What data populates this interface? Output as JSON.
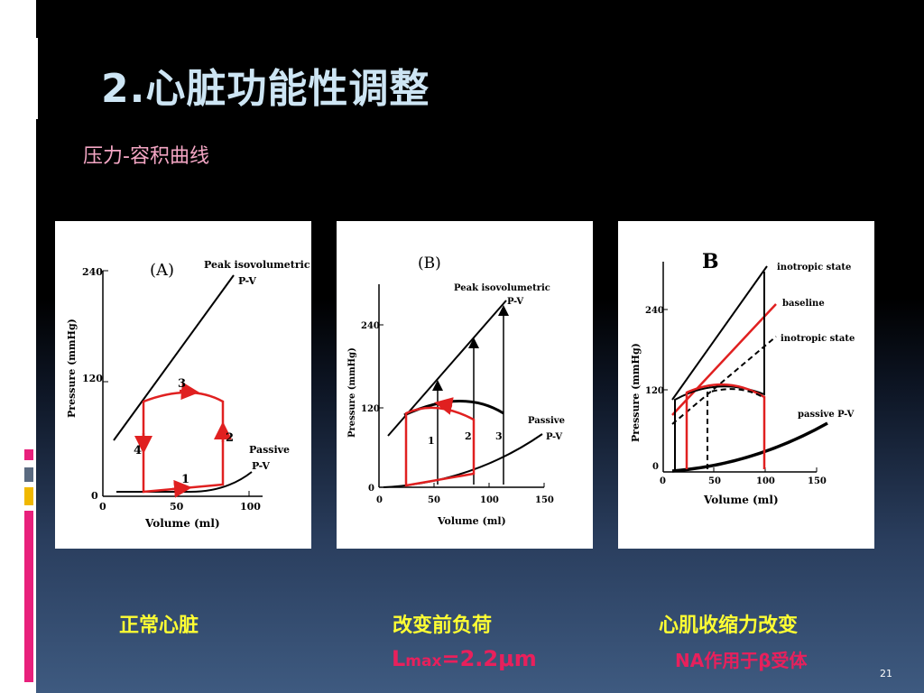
{
  "slide": {
    "title": "2.心脏功能性调整",
    "subtitle": "压力-容积曲线",
    "page_number": "21"
  },
  "panels": [
    {
      "letter": "(A)",
      "ylabel": "Pressure (mmHg)",
      "xlabel": "Volume (ml)",
      "y_ticks": [
        "240",
        "120",
        "0"
      ],
      "x_ticks": [
        "0",
        "50",
        "100"
      ],
      "labels": {
        "peak_line1": "Peak isovolumetric",
        "peak_line2": "P-V",
        "passive_line1": "Passive",
        "passive_line2": "P-V"
      },
      "phase_labels": [
        "1",
        "2",
        "3",
        "4"
      ]
    },
    {
      "letter": "(B)",
      "ylabel": "Pressure (mmHg)",
      "xlabel": "Volume (ml)",
      "y_ticks": [
        "240",
        "120",
        "0"
      ],
      "x_ticks": [
        "0",
        "50",
        "100",
        "150"
      ],
      "labels": {
        "peak_line1": "Peak isovolumetric",
        "peak_line2": "P-V",
        "passive_line1": "Passive",
        "passive_line2": "P-V"
      },
      "phase_labels": [
        "1",
        "2",
        "3"
      ]
    },
    {
      "letter": "B",
      "ylabel": "Pressure (mmHg)",
      "xlabel": "Volume (ml)",
      "y_ticks": [
        "240",
        "120",
        "0"
      ],
      "x_ticks": [
        "0",
        "50",
        "100",
        "150"
      ],
      "labels": {
        "inotropic_top": "inotropic state",
        "baseline": "baseline",
        "inotropic_bottom": "inotropic state",
        "passive": "passive P-V"
      }
    }
  ],
  "captions": {
    "panel1": "正常心脏",
    "panel2": "改变前负荷",
    "panel3": "心肌收缩力改变",
    "lmax_main": "L",
    "lmax_sub": "max",
    "lmax_value": "=2.2μm",
    "na_note": "NA作用于β受体"
  },
  "colors": {
    "title": "#cde5f4",
    "subtitle": "#f4a6c4",
    "caption": "#ffff33",
    "note": "#e8205c",
    "loop_red": "#e02020"
  }
}
